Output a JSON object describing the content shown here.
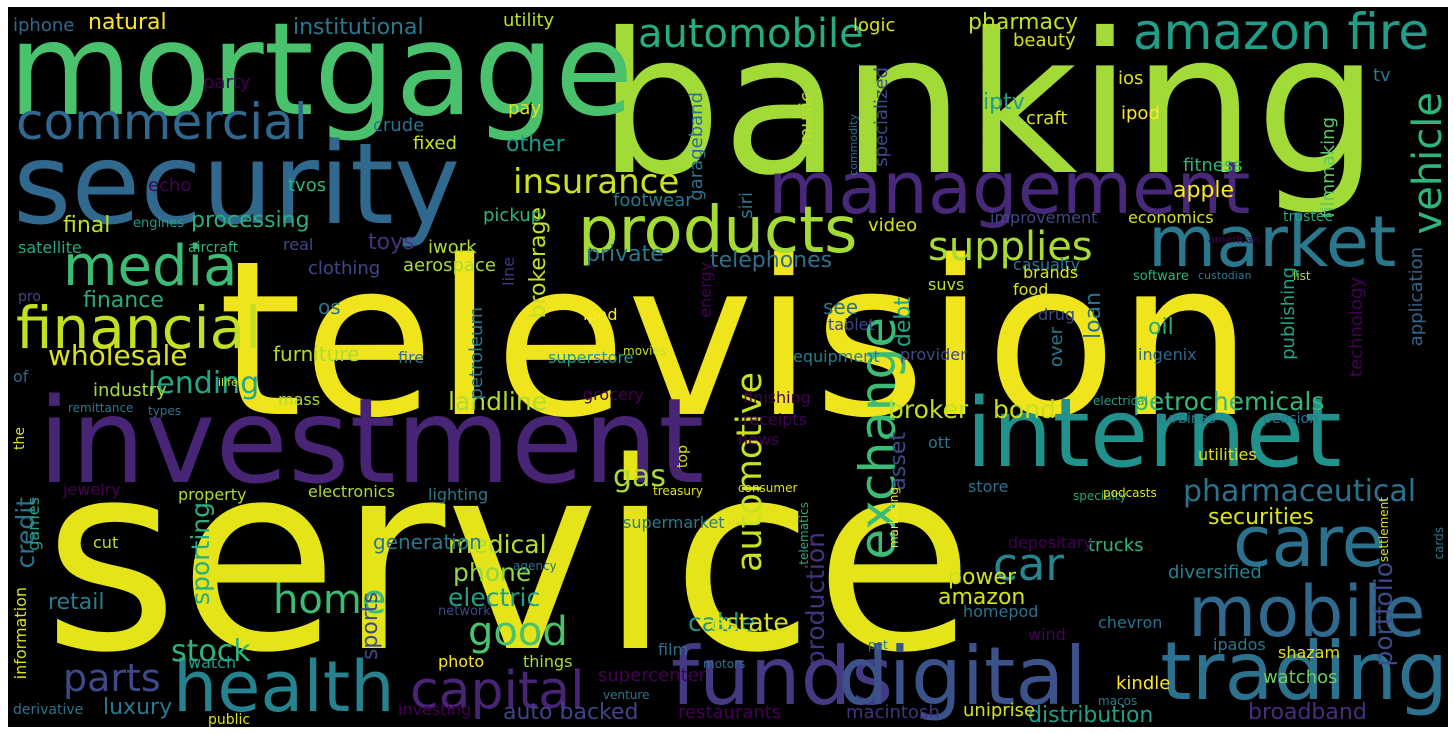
{
  "words": [
    {
      "text": "service",
      "color": "#e5e419"
    },
    {
      "text": "television",
      "color": "#f0e51c"
    },
    {
      "text": "banking",
      "color": "#a2da37"
    },
    {
      "text": "mortgage",
      "color": "#4ac16d"
    },
    {
      "text": "investment",
      "color": "#482475"
    },
    {
      "text": "security",
      "color": "#31688e"
    },
    {
      "text": "internet",
      "color": "#21918c"
    },
    {
      "text": "funds",
      "color": "#443a83"
    },
    {
      "text": "digital",
      "color": "#3b528b"
    },
    {
      "text": "trading",
      "color": "#2c728e"
    },
    {
      "text": "management",
      "color": "#482878"
    },
    {
      "text": "products",
      "color": "#a5db36"
    },
    {
      "text": "market",
      "color": "#2a788e"
    },
    {
      "text": "health",
      "color": "#26828e"
    },
    {
      "text": "mobile",
      "color": "#31688e"
    },
    {
      "text": "care",
      "color": "#2c728e"
    },
    {
      "text": "exchange",
      "color": "#3bbb75"
    },
    {
      "text": "commercial",
      "color": "#31688e"
    },
    {
      "text": "media",
      "color": "#3bbb75"
    },
    {
      "text": "financial",
      "color": "#c2df23"
    },
    {
      "text": "amazon fire",
      "color": "#1f9e89"
    },
    {
      "text": "automobile",
      "color": "#25ac82"
    },
    {
      "text": "capital",
      "color": "#482475"
    },
    {
      "text": "vehicle",
      "color": "#2fb47c"
    },
    {
      "text": "automotive",
      "color": "#cae11f"
    },
    {
      "text": "insurance",
      "color": "#cde11d"
    },
    {
      "text": "supplies",
      "color": "#a8db34"
    },
    {
      "text": "pharmaceutical",
      "color": "#2c728e"
    },
    {
      "text": "good",
      "color": "#4ac16d"
    },
    {
      "text": "home",
      "color": "#3bbb75"
    },
    {
      "text": "parts",
      "color": "#3e4989"
    },
    {
      "text": "lending",
      "color": "#22a884"
    },
    {
      "text": "wholesale",
      "color": "#dde318"
    },
    {
      "text": "portfolio",
      "color": "#3e4989"
    },
    {
      "text": "petrochemicals",
      "color": "#35b779"
    },
    {
      "text": "securities",
      "color": "#dde318"
    },
    {
      "text": "stock",
      "color": "#2fb47c"
    },
    {
      "text": "car",
      "color": "#25858e"
    },
    {
      "text": "production",
      "color": "#46327e"
    },
    {
      "text": "broker",
      "color": "#bddf26"
    },
    {
      "text": "bond",
      "color": "#c8e020"
    },
    {
      "text": "landline",
      "color": "#b2dd2d"
    },
    {
      "text": "medical",
      "color": "#b5de2b"
    },
    {
      "text": "phone",
      "color": "#90d743"
    },
    {
      "text": "electric",
      "color": "#1fa187"
    },
    {
      "text": "cable",
      "color": "#1f9a8a"
    },
    {
      "text": "estate",
      "color": "#d8e219"
    },
    {
      "text": "amazon",
      "color": "#d5e21a"
    },
    {
      "text": "power",
      "color": "#cde11d"
    },
    {
      "text": "gas",
      "color": "#addc30"
    },
    {
      "text": "sporting",
      "color": "#29af7f"
    },
    {
      "text": "sports",
      "color": "#3e4989"
    },
    {
      "text": "retail",
      "color": "#287d8e"
    },
    {
      "text": "credit",
      "color": "#2c728e"
    },
    {
      "text": "finance",
      "color": "#27ad81"
    },
    {
      "text": "processing",
      "color": "#29af7f"
    },
    {
      "text": "final",
      "color": "#bddf26"
    },
    {
      "text": "apple",
      "color": "#fde725"
    },
    {
      "text": "iptv",
      "color": "#1f9e89"
    },
    {
      "text": "pharmacy",
      "color": "#c2df23"
    },
    {
      "text": "natural",
      "color": "#fde725"
    },
    {
      "text": "institutional",
      "color": "#2a788e"
    },
    {
      "text": "other",
      "color": "#1f9a8a"
    },
    {
      "text": "loan",
      "color": "#2c728e"
    },
    {
      "text": "oil",
      "color": "#29af7f"
    },
    {
      "text": "debt",
      "color": "#20a386"
    },
    {
      "text": "asset",
      "color": "#3e4989"
    },
    {
      "text": "private",
      "color": "#2a788e"
    },
    {
      "text": "telephones",
      "color": "#2c728e"
    },
    {
      "text": "toys",
      "color": "#46327e"
    },
    {
      "text": "brokerage",
      "color": "#c8e020"
    },
    {
      "text": "auto backed",
      "color": "#414487"
    },
    {
      "text": "distribution",
      "color": "#1f9e89"
    },
    {
      "text": "broadband",
      "color": "#472f7d"
    },
    {
      "text": "luxury",
      "color": "#2a788e"
    },
    {
      "text": "trucks",
      "color": "#2fb47c"
    },
    {
      "text": "diversified",
      "color": "#26828e"
    },
    {
      "text": "watchos",
      "color": "#6ece58"
    },
    {
      "text": "kindle",
      "color": "#fde725"
    },
    {
      "text": "uniprise",
      "color": "#d5e21a"
    },
    {
      "text": "macintosh",
      "color": "#46327e"
    },
    {
      "text": "restaurants",
      "color": "#440154"
    },
    {
      "text": "publishing",
      "color": "#20a386"
    },
    {
      "text": "technology",
      "color": "#440154"
    },
    {
      "text": "application",
      "color": "#33638d"
    },
    {
      "text": "fitness",
      "color": "#2fb47c"
    },
    {
      "text": "filmmaking",
      "color": "#5ec962"
    },
    {
      "text": "tv",
      "color": "#2a788e"
    },
    {
      "text": "ipod",
      "color": "#fde725"
    },
    {
      "text": "ios",
      "color": "#dde318"
    },
    {
      "text": "craft",
      "color": "#dde318"
    },
    {
      "text": "beauty",
      "color": "#d5e21a"
    },
    {
      "text": "specialized",
      "color": "#3e4989"
    },
    {
      "text": "logic",
      "color": "#dde318"
    },
    {
      "text": "utility",
      "color": "#b5de2b"
    },
    {
      "text": "iphone",
      "color": "#31688e"
    },
    {
      "text": "party",
      "color": "#440154"
    },
    {
      "text": "pay",
      "color": "#dde318"
    },
    {
      "text": "crude",
      "color": "#2c728e"
    },
    {
      "text": "fixed",
      "color": "#c8e020"
    },
    {
      "text": "music",
      "color": "#b8de29"
    },
    {
      "text": "garageband",
      "color": "#2c728e"
    },
    {
      "text": "echo",
      "color": "#440154"
    },
    {
      "text": "tvos",
      "color": "#2fb47c"
    },
    {
      "text": "footwear",
      "color": "#2a788e"
    },
    {
      "text": "pickup",
      "color": "#2fb47c"
    },
    {
      "text": "siri",
      "color": "#2a788e"
    },
    {
      "text": "video",
      "color": "#d8e219"
    },
    {
      "text": "engines",
      "color": "#1f9e89"
    },
    {
      "text": "satellite",
      "color": "#22a884"
    },
    {
      "text": "aircraft",
      "color": "#2fb47c"
    },
    {
      "text": "real",
      "color": "#3e4989"
    },
    {
      "text": "iwork",
      "color": "#addc30"
    },
    {
      "text": "clothing",
      "color": "#3e4989"
    },
    {
      "text": "aerospace",
      "color": "#a8db34"
    },
    {
      "text": "improvement",
      "color": "#3e4989"
    },
    {
      "text": "economics",
      "color": "#d8e219"
    },
    {
      "text": "trustee",
      "color": "#22a884"
    },
    {
      "text": "american",
      "color": "#440154"
    },
    {
      "text": "casualty",
      "color": "#2a788e"
    },
    {
      "text": "brands",
      "color": "#dde318"
    },
    {
      "text": "software",
      "color": "#2fb47c"
    },
    {
      "text": "custodian",
      "color": "#2a788e"
    },
    {
      "text": "list",
      "color": "#a8db34"
    },
    {
      "text": "suvs",
      "color": "#b8de29"
    },
    {
      "text": "food",
      "color": "#dde318"
    },
    {
      "text": "drug",
      "color": "#3e4989"
    },
    {
      "text": "pro",
      "color": "#414487"
    },
    {
      "text": "os",
      "color": "#2c728e"
    },
    {
      "text": "see",
      "color": "#2c728e"
    },
    {
      "text": "ipad",
      "color": "#fde725"
    },
    {
      "text": "tablet",
      "color": "#3e4989"
    },
    {
      "text": "petroleum",
      "color": "#2a788e"
    },
    {
      "text": "line",
      "color": "#46327e"
    },
    {
      "text": "energy",
      "color": "#440154"
    },
    {
      "text": "ilife",
      "color": "#c8e020"
    },
    {
      "text": "furniture",
      "color": "#addc30"
    },
    {
      "text": "fire",
      "color": "#2c728e"
    },
    {
      "text": "superstore",
      "color": "#1f9e89"
    },
    {
      "text": "movies",
      "color": "#c2df23"
    },
    {
      "text": "equipment",
      "color": "#287d8e"
    },
    {
      "text": "provider",
      "color": "#3e4989"
    },
    {
      "text": "over",
      "color": "#2a788e"
    },
    {
      "text": "ingenix",
      "color": "#31688e"
    },
    {
      "text": "of",
      "color": "#31688e"
    },
    {
      "text": "industry",
      "color": "#a5db36"
    },
    {
      "text": "mass",
      "color": "#a8db34"
    },
    {
      "text": "grocery",
      "color": "#440154"
    },
    {
      "text": "finishing",
      "color": "#440154"
    },
    {
      "text": "receipts",
      "color": "#440154"
    },
    {
      "text": "electrical",
      "color": "#20a386"
    },
    {
      "text": "turbines",
      "color": "#2a788e"
    },
    {
      "text": "pension",
      "color": "#2c728e"
    },
    {
      "text": "remittance",
      "color": "#2a788e"
    },
    {
      "text": "types",
      "color": "#2c728e"
    },
    {
      "text": "the",
      "color": "#d5e21a"
    },
    {
      "text": "news",
      "color": "#440154"
    },
    {
      "text": "ott",
      "color": "#2a788e"
    },
    {
      "text": "top",
      "color": "#dde318"
    },
    {
      "text": "utilities",
      "color": "#dde318"
    },
    {
      "text": "jewelry",
      "color": "#440154"
    },
    {
      "text": "property",
      "color": "#addc30"
    },
    {
      "text": "electronics",
      "color": "#a8db34"
    },
    {
      "text": "lighting",
      "color": "#2a788e"
    },
    {
      "text": "treasury",
      "color": "#dde318"
    },
    {
      "text": "consumer",
      "color": "#d8e219"
    },
    {
      "text": "store",
      "color": "#2c728e"
    },
    {
      "text": "specialty",
      "color": "#22a884"
    },
    {
      "text": "podcasts",
      "color": "#dde318"
    },
    {
      "text": "games",
      "color": "#20a386"
    },
    {
      "text": "supermarket",
      "color": "#2a788e"
    },
    {
      "text": "telematics",
      "color": "#29af7f"
    },
    {
      "text": "marketing",
      "color": "#fde725"
    },
    {
      "text": "cut",
      "color": "#bddf26"
    },
    {
      "text": "generation",
      "color": "#2a788e"
    },
    {
      "text": "depositary",
      "color": "#440154"
    },
    {
      "text": "settlement",
      "color": "#d8e219"
    },
    {
      "text": "cards",
      "color": "#2a788e"
    },
    {
      "text": "agency",
      "color": "#2c728e"
    },
    {
      "text": "information",
      "color": "#dde318"
    },
    {
      "text": "network",
      "color": "#3e4989"
    },
    {
      "text": "homepod",
      "color": "#2c728e"
    },
    {
      "text": "chevron",
      "color": "#2c728e"
    },
    {
      "text": "film",
      "color": "#2c728e"
    },
    {
      "text": "wind",
      "color": "#440154"
    },
    {
      "text": "pet",
      "color": "#2c728e"
    },
    {
      "text": "ipados",
      "color": "#2a788e"
    },
    {
      "text": "shazam",
      "color": "#dde318"
    },
    {
      "text": "watch",
      "color": "#1f9e89"
    },
    {
      "text": "things",
      "color": "#a8db34"
    },
    {
      "text": "photo",
      "color": "#fde725"
    },
    {
      "text": "supercenter",
      "color": "#440154"
    },
    {
      "text": "motors",
      "color": "#2c728e"
    },
    {
      "text": "venture",
      "color": "#2c728e"
    },
    {
      "text": "macos",
      "color": "#2a788e"
    },
    {
      "text": "derivative",
      "color": "#2c728e"
    },
    {
      "text": "public",
      "color": "#dde318"
    },
    {
      "text": "investing",
      "color": "#440154"
    },
    {
      "text": "commodity",
      "color": "#2c728e"
    }
  ]
}
